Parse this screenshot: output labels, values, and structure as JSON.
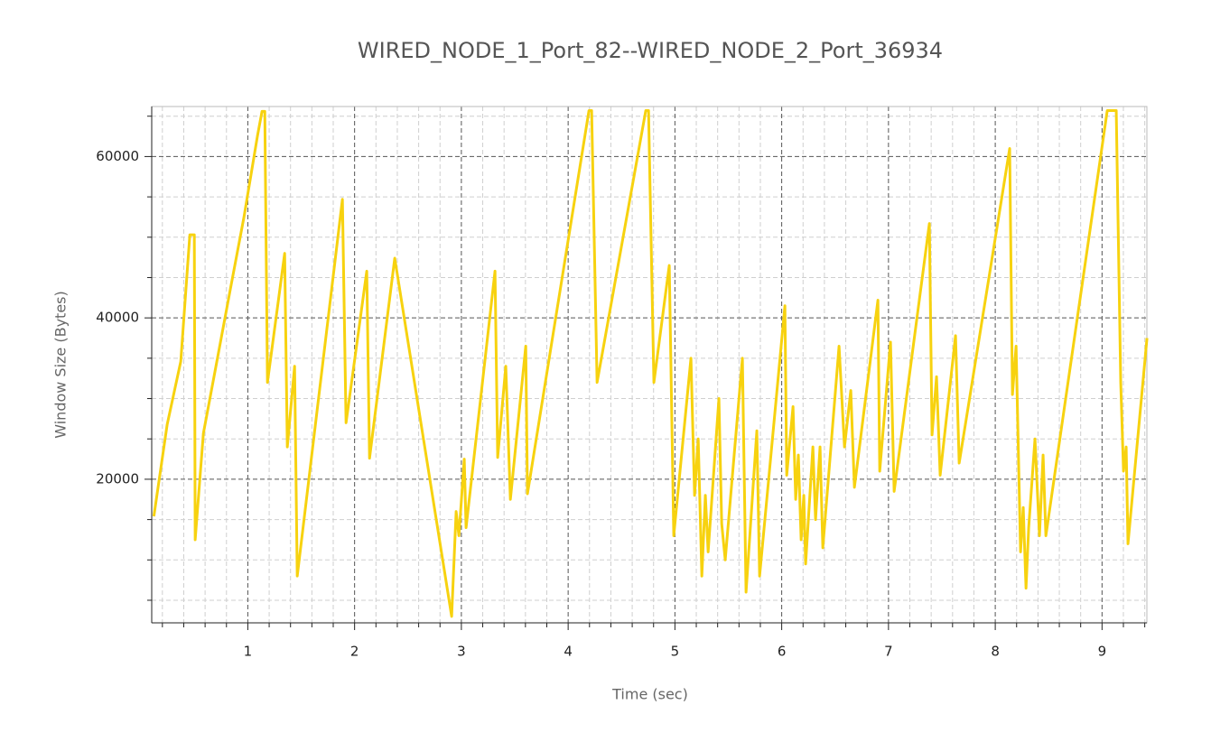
{
  "chart_data": {
    "type": "line",
    "title": "WIRED_NODE_1_Port_82--WIRED_NODE_2_Port_36934",
    "x_label": "Time (sec)",
    "y_label": "Window Size (Bytes)",
    "xlim": [
      0.1,
      9.42
    ],
    "ylim": [
      2200,
      66200
    ],
    "xticks": [
      1,
      2,
      3,
      4,
      5,
      6,
      7,
      8,
      9
    ],
    "yticks": [
      20000,
      40000,
      60000
    ],
    "xminorticks": [
      0.2,
      0.4,
      0.6,
      0.8,
      1.2,
      1.4,
      1.6,
      1.8,
      2.2,
      2.4,
      2.6,
      2.8,
      3.2,
      3.4,
      3.6,
      3.8,
      4.2,
      4.4,
      4.6,
      4.8,
      5.2,
      5.4,
      5.6,
      5.8,
      6.2,
      6.4,
      6.6,
      6.8,
      7.2,
      7.4,
      7.6,
      7.8,
      8.2,
      8.4,
      8.6,
      8.8,
      9.2,
      9.4
    ],
    "yminorticks": [
      5000,
      10000,
      15000,
      25000,
      30000,
      35000,
      45000,
      50000,
      55000,
      65000
    ],
    "grid": true,
    "series": [
      {
        "name": "Window Size",
        "color": "#f7d20f",
        "x": [
          0.12,
          0.245,
          0.372,
          0.457,
          0.499,
          0.507,
          0.584,
          0.71,
          0.837,
          0.964,
          1.091,
          1.133,
          1.159,
          1.184,
          1.345,
          1.37,
          1.438,
          1.463,
          1.886,
          1.92,
          2.114,
          2.14,
          2.376,
          2.909,
          2.951,
          2.977,
          3.027,
          3.044,
          3.315,
          3.34,
          3.416,
          3.459,
          3.603,
          3.619,
          4.195,
          4.22,
          4.271,
          4.727,
          4.753,
          4.803,
          4.947,
          4.989,
          5.15,
          5.184,
          5.218,
          5.252,
          5.285,
          5.311,
          5.412,
          5.438,
          5.471,
          5.632,
          5.666,
          5.767,
          5.793,
          6.03,
          6.047,
          6.106,
          6.131,
          6.156,
          6.182,
          6.207,
          6.224,
          6.292,
          6.317,
          6.359,
          6.385,
          6.537,
          6.588,
          6.647,
          6.681,
          6.901,
          6.918,
          7.019,
          7.053,
          7.383,
          7.408,
          7.45,
          7.484,
          7.628,
          7.662,
          8.135,
          8.161,
          8.195,
          8.237,
          8.262,
          8.288,
          8.313,
          8.372,
          8.414,
          8.448,
          8.474,
          9.049,
          9.133,
          9.175,
          9.201,
          9.226,
          9.243,
          9.421
        ],
        "values": [
          15400,
          26800,
          34600,
          50300,
          50300,
          12500,
          25700,
          34600,
          43600,
          52500,
          62600,
          65600,
          65600,
          32000,
          48000,
          24000,
          34000,
          8000,
          54700,
          27000,
          45800,
          22600,
          47400,
          3000,
          16000,
          13000,
          22500,
          14000,
          45800,
          22700,
          34000,
          17500,
          36500,
          18200,
          65700,
          65700,
          32000,
          65700,
          65700,
          32000,
          46500,
          13000,
          35000,
          18000,
          25000,
          8000,
          18000,
          11000,
          30000,
          14500,
          10000,
          35000,
          6000,
          26000,
          8000,
          41500,
          20500,
          29000,
          17500,
          23000,
          12500,
          18000,
          9500,
          24000,
          15000,
          24000,
          11500,
          36500,
          24000,
          31000,
          19000,
          42200,
          21000,
          37000,
          18500,
          51700,
          25500,
          32700,
          20500,
          37800,
          22000,
          61000,
          30500,
          36500,
          11000,
          16500,
          6500,
          14000,
          25000,
          13000,
          23000,
          13000,
          65700,
          65700,
          32000,
          21000,
          24000,
          12000,
          37500
        ]
      }
    ]
  }
}
